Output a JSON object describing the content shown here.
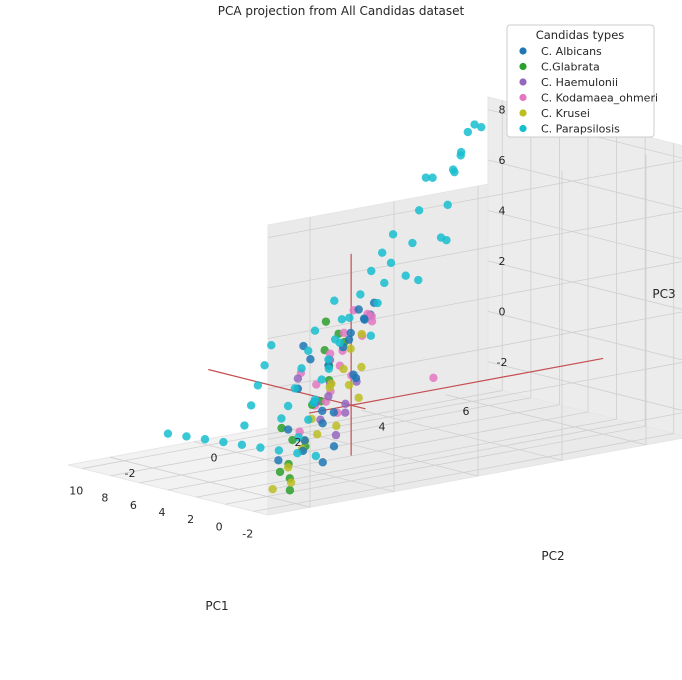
{
  "chart_data": {
    "type": "scatter",
    "projection": "3d",
    "title": "PCA projection from All Candidas dataset",
    "xlabel": "PC1",
    "ylabel": "PC2",
    "zlabel": "PC3",
    "xlim": [
      -3,
      11
    ],
    "ylim": [
      -3,
      7
    ],
    "zlim": [
      -3,
      8.5
    ],
    "xticks": [
      "-2",
      "0",
      "2",
      "4",
      "6",
      "8",
      "10"
    ],
    "yticks": [
      "-2",
      "0",
      "2",
      "4",
      "6"
    ],
    "zticks": [
      "-2",
      "0",
      "2",
      "4",
      "6",
      "8"
    ],
    "grid": true,
    "legend": {
      "title": "Candidas types",
      "position": "top-right"
    },
    "axis_lines": [
      {
        "from": [
          -1,
          0,
          0
        ],
        "to": [
          10,
          0,
          0
        ],
        "color": "#c44e52"
      },
      {
        "from": [
          0,
          -1,
          0
        ],
        "to": [
          0,
          6,
          0
        ],
        "color": "#c44e52"
      },
      {
        "from": [
          0,
          0,
          -2
        ],
        "to": [
          0,
          0,
          6
        ],
        "color": "#c44e52"
      }
    ],
    "series": [
      {
        "name": "C. Albicans",
        "color": "#1f77b4",
        "points": [
          [
            0.5,
            -0.8,
            2.0
          ],
          [
            1.0,
            -0.2,
            1.5
          ],
          [
            1.5,
            0.5,
            2.5
          ],
          [
            0.2,
            -1.2,
            1.0
          ],
          [
            2.0,
            1.0,
            2.8
          ],
          [
            0.8,
            -0.6,
            0.2
          ],
          [
            1.8,
            0.2,
            -0.6
          ],
          [
            2.5,
            0.8,
            2.0
          ],
          [
            3.0,
            1.2,
            3.0
          ],
          [
            0.0,
            -1.5,
            -0.5
          ],
          [
            1.2,
            0.0,
            -1.8
          ],
          [
            2.2,
            -0.4,
            -2.0
          ],
          [
            3.5,
            1.0,
            1.5
          ],
          [
            0.6,
            -0.9,
            -1.2
          ],
          [
            1.6,
            0.6,
            0.8
          ],
          [
            2.8,
            1.5,
            3.2
          ],
          [
            0.4,
            -1.0,
            2.6
          ],
          [
            3.2,
            0.4,
            -0.8
          ],
          [
            1.4,
            -0.2,
            -2.4
          ],
          [
            2.6,
            1.0,
            0.4
          ],
          [
            -0.2,
            -1.8,
            -1.6
          ],
          [
            3.8,
            1.6,
            2.4
          ],
          [
            2.0,
            0.0,
            -1.0
          ],
          [
            1.0,
            0.8,
            3.2
          ]
        ]
      },
      {
        "name": "C.Glabrata",
        "color": "#2ca02c",
        "points": [
          [
            -1.5,
            -2.0,
            -1.5
          ],
          [
            -1.2,
            -1.5,
            -1.0
          ],
          [
            -1.0,
            -1.8,
            -2.2
          ],
          [
            -0.8,
            -1.2,
            0.5
          ],
          [
            -1.4,
            -1.0,
            1.5
          ],
          [
            -0.5,
            -0.8,
            2.5
          ],
          [
            0.0,
            -0.6,
            3.5
          ],
          [
            -1.6,
            -2.2,
            0.0
          ],
          [
            -1.0,
            -0.5,
            2.8
          ],
          [
            -0.6,
            -1.6,
            -0.8
          ],
          [
            -1.3,
            -1.9,
            -2.6
          ],
          [
            -0.3,
            -0.4,
            3.0
          ],
          [
            -1.7,
            -1.3,
            0.8
          ],
          [
            -0.9,
            -2.0,
            -1.9
          ],
          [
            -1.1,
            -0.9,
            2.0
          ]
        ]
      },
      {
        "name": "C. Haemulonii",
        "color": "#9467bd",
        "points": [
          [
            0.0,
            -0.5,
            1.0
          ],
          [
            0.4,
            0.0,
            0.0
          ],
          [
            -0.5,
            -1.0,
            0.5
          ],
          [
            1.0,
            0.2,
            -0.5
          ],
          [
            0.6,
            -0.3,
            1.8
          ],
          [
            -0.2,
            -0.8,
            -0.3
          ],
          [
            0.8,
            0.4,
            0.7
          ],
          [
            0.2,
            -1.2,
            1.4
          ],
          [
            -0.7,
            -0.6,
            -0.9
          ],
          [
            1.3,
            -0.1,
            0.2
          ]
        ]
      },
      {
        "name": "C. Kodamaea_ohmeri",
        "color": "#e377c2",
        "points": [
          [
            -1.0,
            -1.2,
            0.5
          ],
          [
            -0.5,
            -1.0,
            1.2
          ],
          [
            0.0,
            -0.5,
            2.2
          ],
          [
            0.5,
            0.0,
            2.8
          ],
          [
            1.0,
            0.4,
            3.5
          ],
          [
            -0.8,
            -0.6,
            0.0
          ],
          [
            0.2,
            -0.2,
            1.6
          ],
          [
            1.2,
            0.8,
            3.2
          ],
          [
            -1.2,
            -0.9,
            1.0
          ],
          [
            0.7,
            0.5,
            2.5
          ],
          [
            -0.3,
            -0.7,
            0.4
          ],
          [
            1.5,
            1.0,
            3.0
          ],
          [
            -0.6,
            -1.4,
            1.8
          ],
          [
            0.9,
            0.1,
            2.0
          ],
          [
            -1.1,
            -1.6,
            -0.4
          ],
          [
            0.3,
            0.6,
            3.1
          ],
          [
            6.0,
            4.0,
            -1.0
          ],
          [
            -0.9,
            -0.3,
            1.4
          ]
        ]
      },
      {
        "name": "C. Krusei",
        "color": "#bcbd22",
        "points": [
          [
            -0.5,
            -1.6,
            -2.5
          ],
          [
            0.0,
            -1.5,
            -2.0
          ],
          [
            0.5,
            -1.0,
            -1.5
          ],
          [
            1.0,
            -0.6,
            -0.5
          ],
          [
            1.5,
            0.0,
            0.5
          ],
          [
            2.0,
            0.5,
            1.0
          ],
          [
            2.5,
            0.8,
            0.2
          ],
          [
            3.0,
            1.2,
            -0.5
          ],
          [
            -0.3,
            -1.2,
            -1.0
          ],
          [
            0.8,
            -0.2,
            0.8
          ],
          [
            1.8,
            0.6,
            1.8
          ],
          [
            2.2,
            1.0,
            2.2
          ],
          [
            0.2,
            -1.8,
            -2.8
          ],
          [
            1.2,
            -0.4,
            -1.2
          ],
          [
            2.8,
            0.6,
            -1.4
          ],
          [
            3.4,
            1.4,
            0.6
          ]
        ]
      },
      {
        "name": "C. Parapsilosis",
        "color": "#17becf",
        "points": [
          [
            1.0,
            -0.5,
            -2.0
          ],
          [
            2.0,
            -0.6,
            -2.0
          ],
          [
            3.0,
            -0.7,
            -2.0
          ],
          [
            4.0,
            -0.8,
            -2.0
          ],
          [
            5.0,
            -0.9,
            -2.0
          ],
          [
            6.0,
            -1.0,
            -2.0
          ],
          [
            7.0,
            -1.1,
            -2.0
          ],
          [
            8.0,
            -1.2,
            -2.0
          ],
          [
            9.0,
            -1.3,
            -2.0
          ],
          [
            3.0,
            0.0,
            -1.0
          ],
          [
            4.0,
            0.5,
            -0.5
          ],
          [
            5.0,
            1.0,
            0.0
          ],
          [
            6.0,
            1.5,
            0.5
          ],
          [
            7.0,
            2.0,
            1.0
          ],
          [
            8.0,
            2.5,
            1.5
          ],
          [
            4.0,
            -0.3,
            -1.0
          ],
          [
            5.0,
            0.2,
            -0.8
          ],
          [
            6.0,
            0.7,
            -0.4
          ],
          [
            7.0,
            1.2,
            0.1
          ],
          [
            8.0,
            1.7,
            0.5
          ],
          [
            9.0,
            2.2,
            1.0
          ],
          [
            10.0,
            3.0,
            1.8
          ],
          [
            6.0,
            2.0,
            2.0
          ],
          [
            7.0,
            2.6,
            2.6
          ],
          [
            8.0,
            3.2,
            3.2
          ],
          [
            9.0,
            3.8,
            3.6
          ],
          [
            10.0,
            4.4,
            4.0
          ],
          [
            5.0,
            3.0,
            3.5
          ],
          [
            6.0,
            3.5,
            4.5
          ],
          [
            7.0,
            4.0,
            5.5
          ],
          [
            8.0,
            4.5,
            6.5
          ],
          [
            9.0,
            5.0,
            6.2
          ],
          [
            4.0,
            3.5,
            5.0
          ],
          [
            5.0,
            4.0,
            6.0
          ],
          [
            6.0,
            4.5,
            7.0
          ],
          [
            7.0,
            5.0,
            7.5
          ],
          [
            8.0,
            5.5,
            8.0
          ],
          [
            9.0,
            6.0,
            8.0
          ],
          [
            10.0,
            6.5,
            7.6
          ],
          [
            4.5,
            2.0,
            1.5
          ],
          [
            5.5,
            2.5,
            2.5
          ],
          [
            6.5,
            3.0,
            3.0
          ],
          [
            7.5,
            3.5,
            3.5
          ],
          [
            6.0,
            -0.5,
            -1.5
          ],
          [
            7.0,
            0.0,
            -1.0
          ],
          [
            8.0,
            0.5,
            -0.5
          ],
          [
            9.0,
            1.0,
            0.0
          ],
          [
            10.0,
            1.5,
            0.5
          ],
          [
            2.5,
            -0.4,
            -1.5
          ],
          [
            3.5,
            0.3,
            -0.5
          ],
          [
            4.5,
            1.0,
            0.5
          ],
          [
            5.5,
            1.6,
            1.2
          ],
          [
            9.5,
            5.5,
            3.5
          ],
          [
            10.0,
            5.0,
            2.0
          ],
          [
            10.5,
            6.0,
            6.0
          ],
          [
            8.5,
            5.5,
            7.0
          ]
        ]
      }
    ]
  }
}
